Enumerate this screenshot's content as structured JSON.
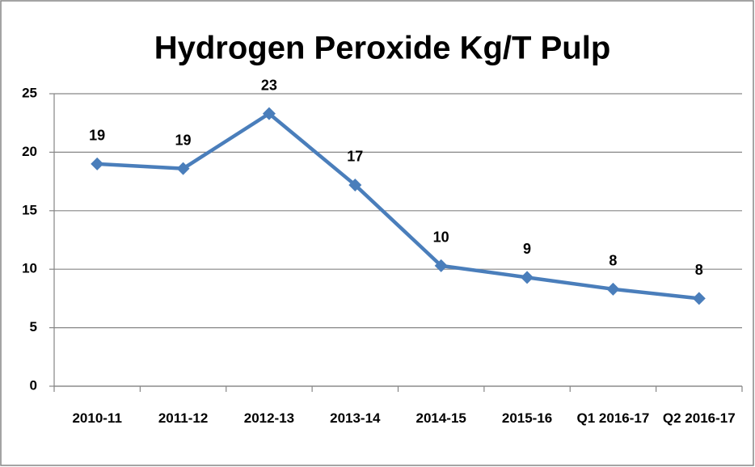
{
  "chart_data": {
    "type": "line",
    "title": "Hydrogen Peroxide Kg/T Pulp",
    "categories": [
      "2010-11",
      "2011-12",
      "2012-13",
      "2013-14",
      "2014-15",
      "2015-16",
      "Q1 2016-17",
      "Q2 2016-17"
    ],
    "series": [
      {
        "name": "Hydrogen Peroxide Kg/T Pulp",
        "color": "#4a7ebb",
        "values": [
          19.0,
          18.6,
          23.3,
          17.2,
          10.3,
          9.3,
          8.3,
          7.5
        ],
        "value_labels": [
          "19",
          "19",
          "23",
          "17",
          "10",
          "9",
          "8",
          "8"
        ]
      }
    ],
    "ylim": [
      0,
      25
    ],
    "yticks": [
      0,
      5,
      10,
      15,
      20,
      25
    ],
    "grid": true
  }
}
